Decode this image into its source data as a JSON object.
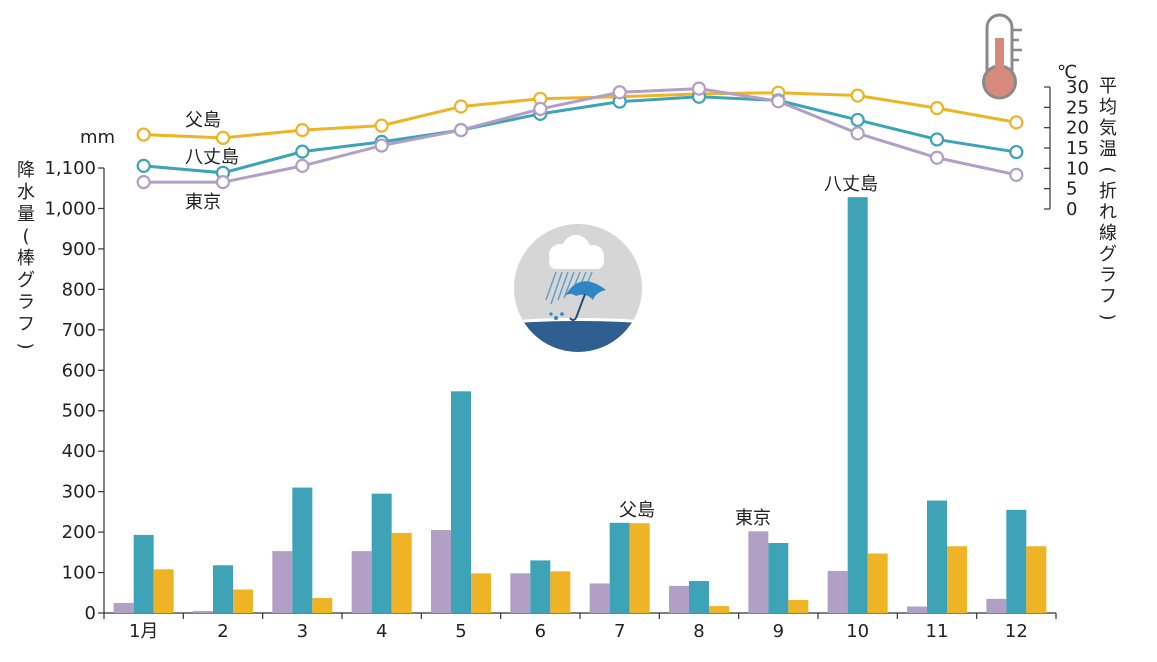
{
  "chart_data": {
    "type": "bar+line",
    "categories": [
      "1月",
      "2",
      "3",
      "4",
      "5",
      "6",
      "7",
      "8",
      "9",
      "10",
      "11",
      "12"
    ],
    "precipitation": {
      "axis_label": "降水量(棒グラフ)",
      "unit": "mm",
      "ylim": [
        0,
        1100
      ],
      "ticks": [
        "0",
        "100",
        "200",
        "300",
        "400",
        "500",
        "600",
        "700",
        "800",
        "900",
        "1,000",
        "1,100"
      ],
      "series": [
        {
          "name": "東京",
          "color": "#b19fc6",
          "values": [
            25,
            5,
            153,
            153,
            205,
            98,
            73,
            67,
            202,
            104,
            16,
            35
          ]
        },
        {
          "name": "八丈島",
          "color": "#3ea3b7",
          "values": [
            193,
            118,
            310,
            295,
            548,
            130,
            223,
            79,
            173,
            1028,
            278,
            255
          ]
        },
        {
          "name": "父島",
          "color": "#eeb425",
          "values": [
            108,
            58,
            37,
            198,
            98,
            103,
            222,
            17,
            32,
            147,
            165,
            165
          ]
        }
      ]
    },
    "temperature": {
      "axis_label": "平均気温(折れ線グラフ)",
      "unit": "℃",
      "ylim": [
        0,
        30
      ],
      "ticks": [
        "0",
        "5",
        "10",
        "15",
        "20",
        "25",
        "30"
      ],
      "series": [
        {
          "name": "父島",
          "color": "#eeb425",
          "values": [
            18.3,
            17.5,
            19.4,
            20.5,
            25.2,
            27.1,
            27.6,
            28.3,
            28.6,
            27.9,
            24.8,
            21.3
          ]
        },
        {
          "name": "八丈島",
          "color": "#3ea3b7",
          "values": [
            10.6,
            8.9,
            14.1,
            16.5,
            19.4,
            23.4,
            26.4,
            27.6,
            26.7,
            21.9,
            17.1,
            14.0
          ]
        },
        {
          "name": "東京",
          "color": "#b19fc6",
          "values": [
            6.6,
            6.6,
            10.6,
            15.6,
            19.4,
            24.6,
            28.7,
            29.6,
            26.5,
            18.6,
            12.6,
            8.4
          ]
        }
      ]
    },
    "annotations": [
      {
        "text": "父島",
        "target": "temp-line"
      },
      {
        "text": "八丈島",
        "target": "temp-line"
      },
      {
        "text": "東京",
        "target": "temp-line"
      },
      {
        "text": "八丈島",
        "target": "bar-oct"
      },
      {
        "text": "父島",
        "target": "bar-jul"
      },
      {
        "text": "東京",
        "target": "bar-sep"
      }
    ],
    "icons": [
      "thermometer-icon",
      "rain-umbrella-icon"
    ]
  }
}
